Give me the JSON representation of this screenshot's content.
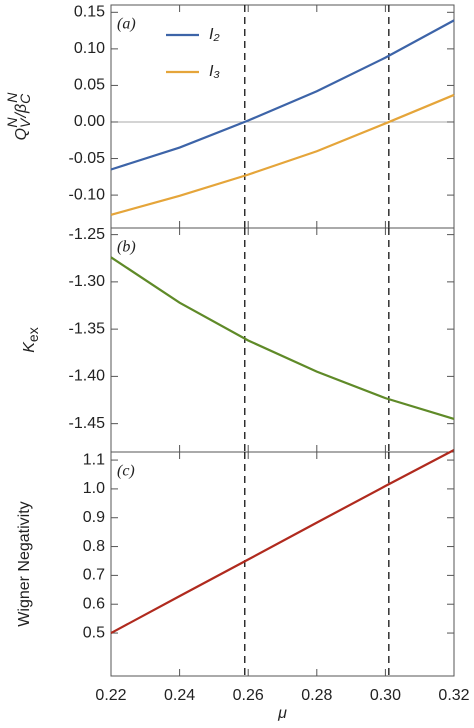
{
  "chart_data": [
    {
      "type": "line",
      "panel_label": "(a)",
      "ylabel": [
        {
          "text": "Q",
          "italic": true
        },
        {
          "text": "V",
          "shift": "sub",
          "italic": true
        },
        {
          "text": "N",
          "shift": "sup",
          "italic": true
        },
        {
          "text": "/β",
          "italic": true
        },
        {
          "text": "C",
          "shift": "sub",
          "italic": true
        },
        {
          "text": "N",
          "shift": "sup",
          "italic": true
        }
      ],
      "x": [
        0.22,
        0.24,
        0.26,
        0.28,
        0.3,
        0.32
      ],
      "series": [
        {
          "name": "I₂",
          "color": "#3d64a8",
          "values": [
            -0.065,
            -0.035,
            0.002,
            0.042,
            0.088,
            0.139
          ]
        },
        {
          "name": "I₃",
          "color": "#e5a53a",
          "values": [
            -0.127,
            -0.101,
            -0.072,
            -0.04,
            -0.002,
            0.037
          ]
        }
      ],
      "xlim": [
        0.22,
        0.32
      ],
      "ylim": [
        -0.145,
        0.16
      ],
      "yticks": [
        {
          "value": -0.1,
          "label": "-0.10"
        },
        -0.05,
        {
          "value": 0,
          "label": "0.00"
        },
        0.05,
        {
          "value": 0.1,
          "label": "0.10"
        },
        0.15
      ],
      "hlines": [
        0
      ],
      "vlines": [
        0.259,
        0.301
      ],
      "legend": "upper left"
    },
    {
      "type": "line",
      "panel_label": "(b)",
      "ylabel": [
        {
          "text": "K",
          "italic": true
        },
        {
          "text": "ex",
          "shift": "sub"
        }
      ],
      "x": [
        0.22,
        0.24,
        0.26,
        0.28,
        0.3,
        0.32
      ],
      "series": [
        {
          "color": "#5f8a28",
          "values": [
            -1.274,
            -1.322,
            -1.362,
            -1.395,
            -1.423,
            -1.445
          ]
        }
      ],
      "xlim": [
        0.22,
        0.32
      ],
      "ylim": [
        -1.48,
        -1.243
      ],
      "yticks": [
        -1.45,
        {
          "value": -1.4,
          "label": "-1.40"
        },
        -1.35,
        {
          "value": -1.3,
          "label": "-1.30"
        },
        -1.25
      ],
      "vlines": [
        0.259,
        0.301
      ]
    },
    {
      "type": "line",
      "panel_label": "(c)",
      "ylabel": [
        {
          "text": "Wigner Negativity"
        }
      ],
      "x": [
        0.22,
        0.24,
        0.26,
        0.28,
        0.3,
        0.32
      ],
      "series": [
        {
          "color": "#b02a1e",
          "values": [
            0.5,
            0.628,
            0.755,
            0.883,
            1.01,
            1.135
          ]
        }
      ],
      "xlim": [
        0.22,
        0.32
      ],
      "ylim": [
        0.351,
        1.128
      ],
      "yticks": [
        0.5,
        0.6,
        0.7,
        0.8,
        0.9,
        {
          "value": 1.0,
          "label": "1.0"
        },
        1.1
      ],
      "xticks": [
        0.22,
        0.24,
        0.26,
        0.28,
        {
          "value": 0.3,
          "label": "0.30"
        },
        0.32
      ],
      "xlabel": "μ",
      "vlines": [
        0.259,
        0.301
      ]
    }
  ]
}
